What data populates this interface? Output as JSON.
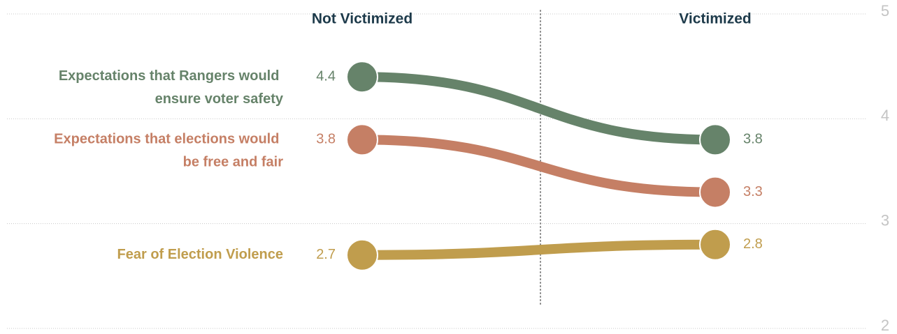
{
  "chart_data": {
    "type": "slope",
    "categories": [
      "Not Victimized",
      "Victimized"
    ],
    "series": [
      {
        "name": "Expectations that Rangers would ensure voter safety",
        "color": "#66836a",
        "values": [
          4.4,
          3.8
        ]
      },
      {
        "name": "Expectations that elections would be free and fair",
        "color": "#c57f65",
        "values": [
          3.8,
          3.3
        ]
      },
      {
        "name": "Fear of Election Violence",
        "color": "#c09d4d",
        "values": [
          2.7,
          2.8
        ]
      }
    ],
    "ylim": [
      2,
      5
    ],
    "yticks": [
      2,
      3,
      4,
      5
    ],
    "grid": true
  }
}
